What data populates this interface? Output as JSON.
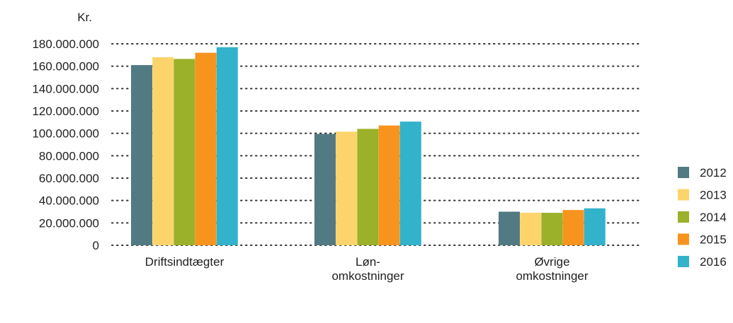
{
  "chart_data": {
    "type": "bar",
    "ylabel": "Kr.",
    "ylim": [
      0,
      180000000
    ],
    "yticks": [
      0,
      20000000,
      40000000,
      60000000,
      80000000,
      100000000,
      120000000,
      140000000,
      160000000,
      180000000
    ],
    "ytick_labels": [
      "0",
      "20.000.000",
      "40.000.000",
      "60.000.000",
      "80.000.000",
      "100.000.000",
      "120.000.000",
      "140.000.000",
      "160.000.000",
      "180.000.000"
    ],
    "grid": "dotted horizontal",
    "legend_position": "right",
    "categories": [
      [
        "Driftsindtægter"
      ],
      [
        "Løn-",
        "omkostninger"
      ],
      [
        "Øvrige",
        "omkostninger"
      ]
    ],
    "series": [
      {
        "name": "2012",
        "color": "#527a82",
        "values": [
          161000000,
          99500000,
          30000000
        ]
      },
      {
        "name": "2013",
        "color": "#fdd46c",
        "values": [
          168000000,
          101500000,
          29000000
        ]
      },
      {
        "name": "2014",
        "color": "#9bb129",
        "values": [
          166500000,
          104000000,
          29000000
        ]
      },
      {
        "name": "2015",
        "color": "#f7941d",
        "values": [
          172000000,
          107000000,
          31500000
        ]
      },
      {
        "name": "2016",
        "color": "#33b2cc",
        "values": [
          177000000,
          110500000,
          33000000
        ]
      }
    ]
  }
}
